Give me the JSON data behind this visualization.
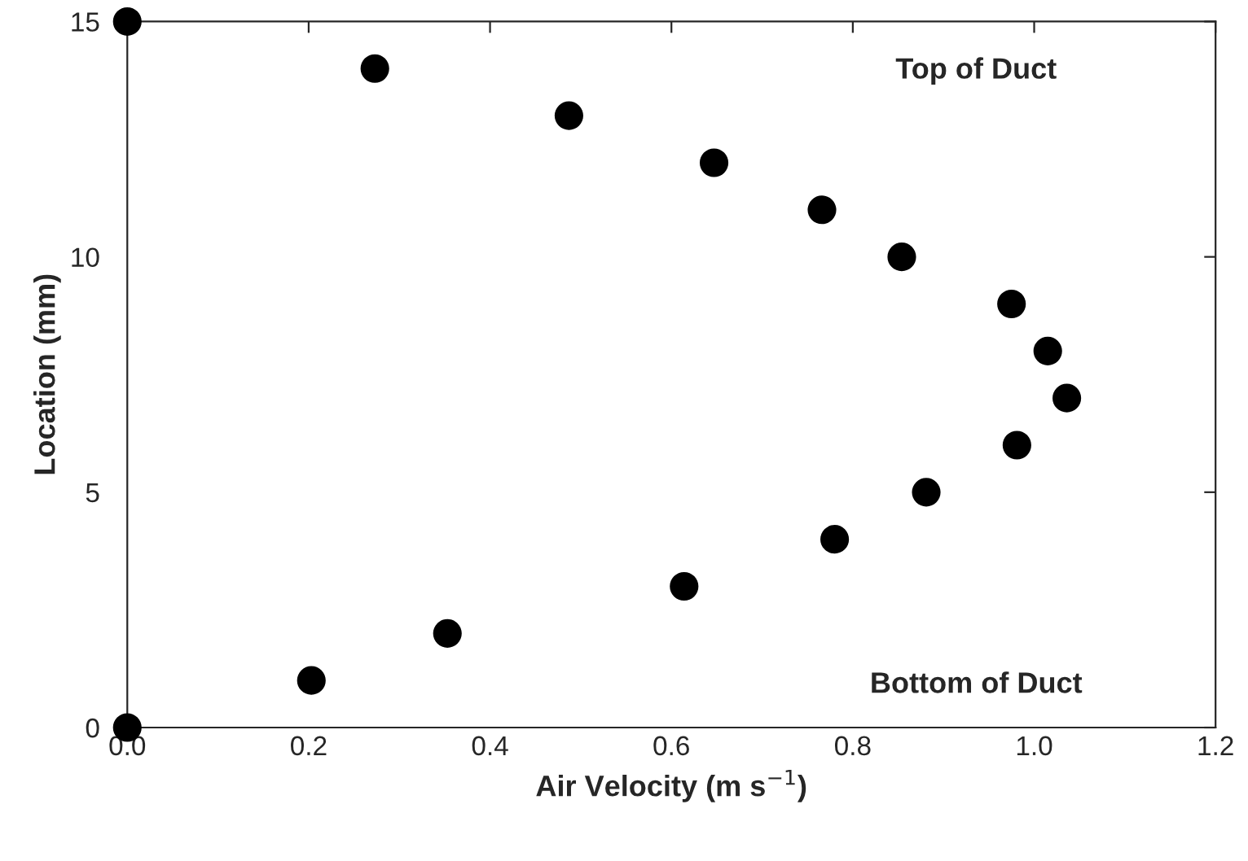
{
  "chart_data": {
    "type": "scatter",
    "xlabel": "Air Velocity (m s$^{−1}$)",
    "ylabel": "Location (mm)",
    "x": [
      0,
      0.203,
      0.353,
      0.614,
      0.78,
      0.881,
      0.981,
      1.036,
      1.015,
      0.975,
      0.854,
      0.766,
      0.647,
      0.487,
      0.273,
      0
    ],
    "series": [
      {
        "color": "#000000",
        "values": [
          0,
          1,
          2,
          3,
          4,
          5,
          6,
          7,
          8,
          9,
          10,
          11,
          12,
          13,
          14,
          15
        ]
      }
    ],
    "marker": "circle",
    "grid": false,
    "legend": false,
    "xlim": [
      0,
      1.2
    ],
    "ylim": [
      0,
      15
    ],
    "xticks": [
      {
        "value": 0,
        "label": "0.0"
      },
      {
        "value": 0.2,
        "label": "0.2"
      },
      {
        "value": 0.4,
        "label": "0.4"
      },
      {
        "value": 0.6,
        "label": "0.6"
      },
      {
        "value": 0.8,
        "label": "0.8"
      },
      {
        "value": 1.0,
        "label": "1.0"
      },
      {
        "value": 1.2,
        "label": "1.2"
      }
    ],
    "yticks": [
      0,
      5,
      10,
      15
    ],
    "annotations": [
      "Top of Duct",
      "Bottom of Duct"
    ]
  }
}
